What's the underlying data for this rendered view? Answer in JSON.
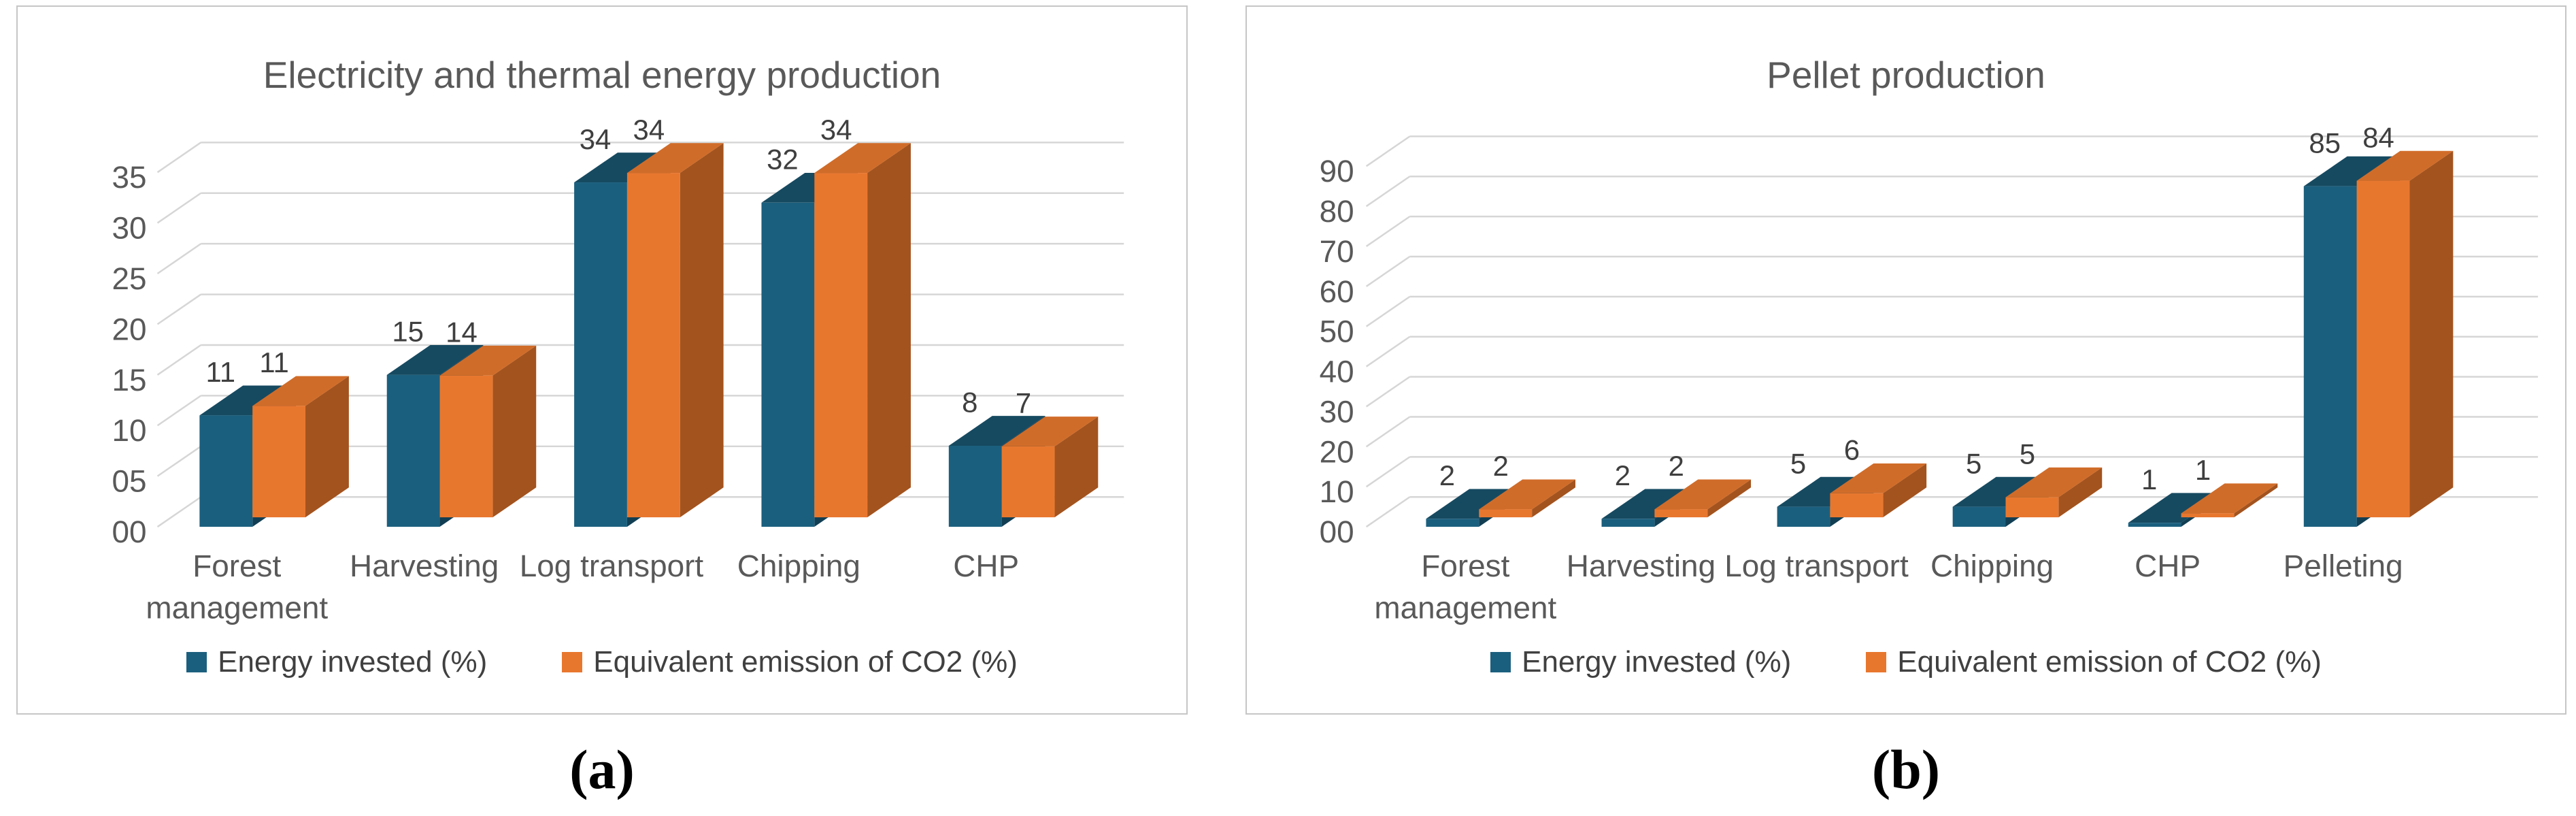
{
  "captions": {
    "a": "(a)",
    "b": "(b)"
  },
  "colors": {
    "blue_front": "#1B5F7E",
    "blue_top": "#164A61",
    "blue_side": "#123E53",
    "orange_front": "#E8772E",
    "orange_top": "#D06C29",
    "orange_side": "#A3531E",
    "grid": "#D6D6D6",
    "axis_text": "#595959",
    "category_text": "#595959",
    "data_label_text": "#3F3F3F",
    "title_text": "#595959",
    "legend_text": "#404040",
    "panel_border": "#C6C6C6"
  },
  "charts": [
    {
      "title": "Electricity and thermal energy production",
      "legend": [
        {
          "label": "Energy invested (%)",
          "color": "#1B5F7E"
        },
        {
          "label": "Equivalent emission of CO2 (%)",
          "color": "#E8772E"
        }
      ],
      "chart_data": {
        "type": "bar",
        "style": "3d-clustered-column",
        "title": "Electricity and thermal energy production",
        "categories": [
          "Forest management",
          "Harvesting",
          "Log transport",
          "Chipping",
          "CHP"
        ],
        "series": [
          {
            "name": "Energy invested (%)",
            "values": [
              11,
              15,
              34,
              32,
              8
            ]
          },
          {
            "name": "Equivalent emission of CO2 (%)",
            "values": [
              11,
              14,
              34,
              34,
              7
            ]
          }
        ],
        "data_labels": true,
        "xlabel": "",
        "ylabel": "",
        "ylim": [
          0,
          35
        ],
        "y_tick_labels": [
          "00",
          "05",
          "10",
          "15",
          "20",
          "25",
          "30",
          "35"
        ],
        "grid": true,
        "legend_position": "bottom"
      }
    },
    {
      "title": "Pellet production",
      "legend": [
        {
          "label": "Energy invested (%)",
          "color": "#1B5F7E"
        },
        {
          "label": "Equivalent emission of CO2 (%)",
          "color": "#E8772E"
        }
      ],
      "chart_data": {
        "type": "bar",
        "style": "3d-clustered-column",
        "title": "Pellet production",
        "categories": [
          "Forest management",
          "Harvesting",
          "Log transport",
          "Chipping",
          "CHP",
          "Pelleting"
        ],
        "series": [
          {
            "name": "Energy invested (%)",
            "values": [
              2,
              2,
              5,
              5,
              1,
              85
            ]
          },
          {
            "name": "Equivalent emission of CO2 (%)",
            "values": [
              2,
              2,
              6,
              5,
              1,
              84
            ]
          }
        ],
        "data_labels": true,
        "xlabel": "",
        "ylabel": "",
        "ylim": [
          0,
          90
        ],
        "y_tick_labels": [
          "00",
          "10",
          "20",
          "30",
          "40",
          "50",
          "60",
          "70",
          "80",
          "90"
        ],
        "grid": true,
        "legend_position": "bottom"
      }
    }
  ]
}
